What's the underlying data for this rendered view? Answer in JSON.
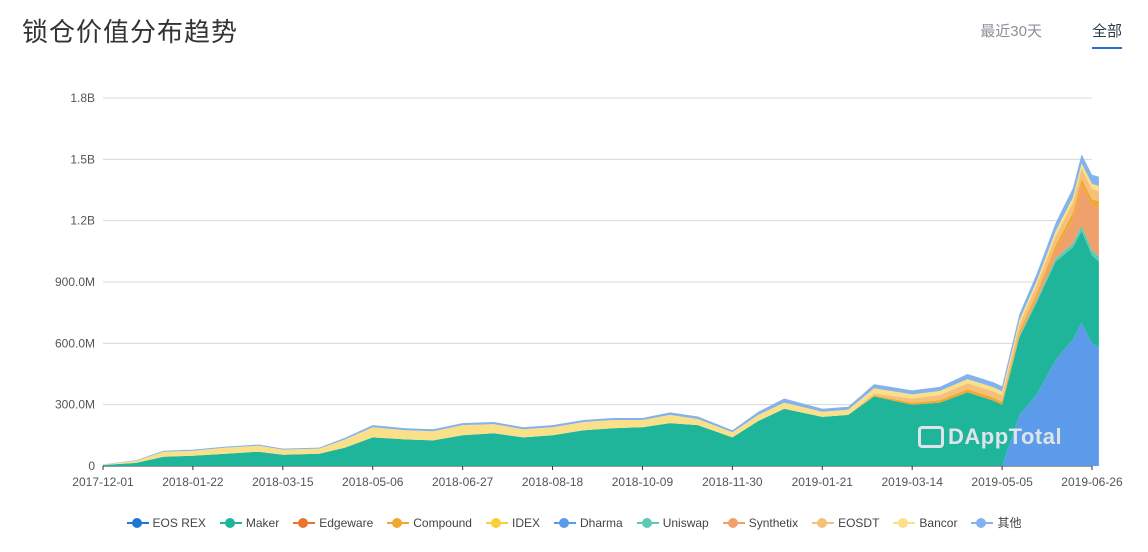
{
  "header": {
    "title": "锁仓价值分布趋势",
    "tabs": [
      {
        "label": "最近30天",
        "active": false
      },
      {
        "label": "全部",
        "active": true
      }
    ]
  },
  "watermark": "DAppTotal",
  "colors": {
    "EOS REX": "#1f77d4",
    "Maker": "#1fb59a",
    "Edgeware": "#e8762c",
    "Compound": "#f0a830",
    "IDEX": "#f7cf3a",
    "Dharma": "#5b9bea",
    "Uniswap": "#5ccab5",
    "Synthetix": "#f0a06a",
    "EOSDT": "#f5c07a",
    "Bancor": "#fbe08a",
    "其他": "#84b2ec"
  },
  "legend": [
    "EOS REX",
    "Maker",
    "Edgeware",
    "Compound",
    "IDEX",
    "Dharma",
    "Uniswap",
    "Synthetix",
    "EOSDT",
    "Bancor",
    "其他"
  ],
  "chart_data": {
    "type": "area",
    "stacked": true,
    "x_ticks": [
      "2017-12-01",
      "2018-01-22",
      "2018-03-15",
      "2018-05-06",
      "2018-06-27",
      "2018-08-18",
      "2018-10-09",
      "2018-11-30",
      "2019-01-21",
      "2019-03-14",
      "2019-05-05",
      "2019-06-26"
    ],
    "y_ticks": [
      "0",
      "300.0M",
      "600.0M",
      "900.0M",
      "1.2B",
      "1.5B",
      "1.8B"
    ],
    "ylim": [
      0,
      1800000000
    ],
    "grid": true,
    "legend_position": "bottom",
    "x": [
      "2017-12-01",
      "2017-12-20",
      "2018-01-05",
      "2018-01-22",
      "2018-02-10",
      "2018-03-01",
      "2018-03-15",
      "2018-04-05",
      "2018-04-20",
      "2018-05-06",
      "2018-05-25",
      "2018-06-10",
      "2018-06-27",
      "2018-07-15",
      "2018-08-01",
      "2018-08-18",
      "2018-09-05",
      "2018-09-22",
      "2018-10-09",
      "2018-10-25",
      "2018-11-10",
      "2018-11-30",
      "2018-12-15",
      "2018-12-30",
      "2019-01-21",
      "2019-02-05",
      "2019-02-20",
      "2019-03-14",
      "2019-03-30",
      "2019-04-15",
      "2019-04-30",
      "2019-05-05",
      "2019-05-15",
      "2019-05-25",
      "2019-06-05",
      "2019-06-15",
      "2019-06-20",
      "2019-06-26",
      "2019-06-30"
    ],
    "series": [
      {
        "name": "Dharma",
        "values": [
          0,
          0,
          0,
          0,
          0,
          0,
          0,
          0,
          0,
          0,
          0,
          0,
          0,
          0,
          0,
          0,
          0,
          0,
          0,
          0,
          0,
          0,
          0,
          0,
          0,
          0,
          0,
          0,
          0,
          0,
          0,
          0,
          250000000,
          350000000,
          520000000,
          620000000,
          700000000,
          600000000,
          580000000
        ]
      },
      {
        "name": "Maker",
        "values": [
          5000000,
          15000000,
          45000000,
          50000000,
          60000000,
          70000000,
          55000000,
          60000000,
          90000000,
          140000000,
          130000000,
          125000000,
          150000000,
          160000000,
          140000000,
          150000000,
          175000000,
          185000000,
          190000000,
          210000000,
          200000000,
          140000000,
          220000000,
          280000000,
          240000000,
          250000000,
          340000000,
          300000000,
          310000000,
          360000000,
          320000000,
          300000000,
          380000000,
          450000000,
          480000000,
          450000000,
          450000000,
          430000000,
          420000000
        ]
      },
      {
        "name": "Uniswap",
        "values": [
          0,
          0,
          0,
          0,
          0,
          0,
          0,
          0,
          0,
          0,
          0,
          0,
          0,
          0,
          0,
          0,
          0,
          0,
          0,
          0,
          0,
          0,
          0,
          0,
          0,
          0,
          0,
          0,
          0,
          0,
          0,
          0,
          5000000,
          10000000,
          15000000,
          20000000,
          25000000,
          25000000,
          25000000
        ]
      },
      {
        "name": "Synthetix",
        "values": [
          0,
          0,
          0,
          0,
          0,
          0,
          0,
          0,
          0,
          0,
          0,
          0,
          0,
          0,
          0,
          0,
          0,
          0,
          0,
          0,
          0,
          0,
          0,
          0,
          0,
          0,
          0,
          0,
          0,
          0,
          0,
          0,
          5000000,
          15000000,
          40000000,
          120000000,
          200000000,
          220000000,
          240000000
        ]
      },
      {
        "name": "Compound",
        "values": [
          0,
          0,
          0,
          0,
          0,
          0,
          0,
          0,
          0,
          0,
          0,
          0,
          0,
          0,
          0,
          0,
          0,
          0,
          0,
          0,
          0,
          0,
          0,
          0,
          0,
          0,
          5000000,
          10000000,
          12000000,
          15000000,
          15000000,
          15000000,
          18000000,
          20000000,
          25000000,
          30000000,
          30000000,
          30000000,
          30000000
        ]
      },
      {
        "name": "EOSDT",
        "values": [
          0,
          0,
          0,
          0,
          0,
          0,
          0,
          0,
          0,
          0,
          0,
          0,
          0,
          0,
          0,
          0,
          0,
          0,
          0,
          0,
          0,
          0,
          0,
          0,
          0,
          0,
          10000000,
          20000000,
          25000000,
          30000000,
          30000000,
          30000000,
          35000000,
          40000000,
          45000000,
          50000000,
          50000000,
          50000000,
          50000000
        ]
      },
      {
        "name": "Bancor",
        "values": [
          2000000,
          10000000,
          25000000,
          25000000,
          30000000,
          30000000,
          25000000,
          25000000,
          40000000,
          50000000,
          45000000,
          45000000,
          50000000,
          45000000,
          40000000,
          40000000,
          40000000,
          40000000,
          35000000,
          40000000,
          30000000,
          25000000,
          30000000,
          30000000,
          25000000,
          25000000,
          25000000,
          20000000,
          20000000,
          20000000,
          20000000,
          20000000,
          20000000,
          20000000,
          25000000,
          25000000,
          25000000,
          25000000,
          25000000
        ]
      },
      {
        "name": "其他",
        "values": [
          1000000,
          3000000,
          5000000,
          5000000,
          5000000,
          5000000,
          5000000,
          5000000,
          8000000,
          10000000,
          10000000,
          10000000,
          10000000,
          10000000,
          10000000,
          10000000,
          10000000,
          10000000,
          10000000,
          12000000,
          12000000,
          10000000,
          15000000,
          20000000,
          15000000,
          15000000,
          20000000,
          20000000,
          20000000,
          25000000,
          25000000,
          25000000,
          30000000,
          35000000,
          40000000,
          45000000,
          45000000,
          45000000,
          45000000
        ]
      }
    ]
  }
}
